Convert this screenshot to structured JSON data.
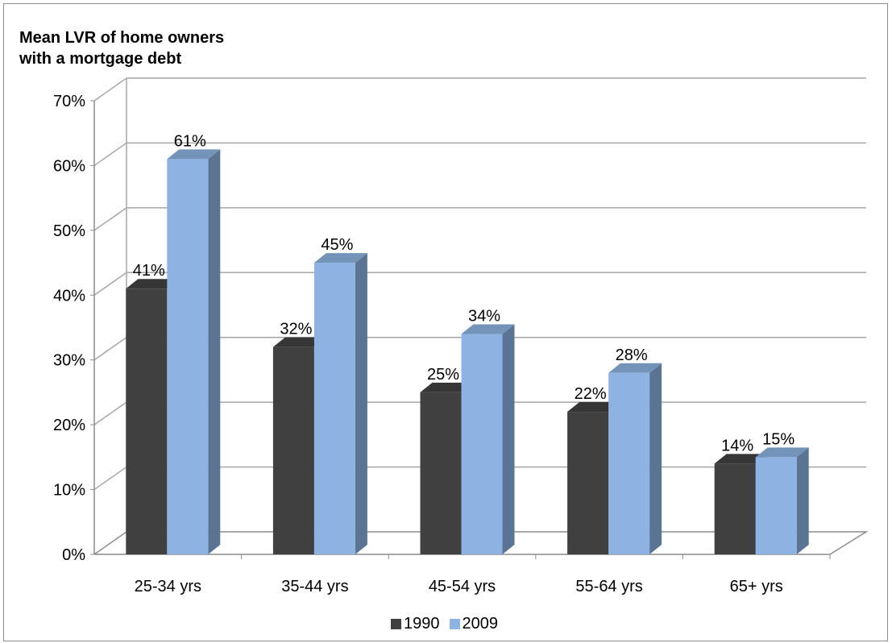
{
  "chart_data": {
    "type": "bar",
    "title": "Mean LVR of home owners with a mortgage debt",
    "title_lines": [
      "Mean LVR of home owners",
      "with a mortgage debt"
    ],
    "categories": [
      "25-34 yrs",
      "35-44 yrs",
      "45-54 yrs",
      "55-64 yrs",
      "65+ yrs"
    ],
    "series": [
      {
        "name": "1990",
        "values": [
          41,
          32,
          25,
          22,
          14
        ],
        "color": "#404040",
        "labels": [
          "41%",
          "32%",
          "25%",
          "22%",
          "14%"
        ]
      },
      {
        "name": "2009",
        "values": [
          61,
          45,
          34,
          28,
          15
        ],
        "color": "#8db3e2",
        "labels": [
          "61%",
          "45%",
          "34%",
          "28%",
          "15%"
        ]
      }
    ],
    "yticks": [
      "0%",
      "10%",
      "20%",
      "30%",
      "40%",
      "50%",
      "60%",
      "70%"
    ],
    "ylim": [
      0,
      70
    ],
    "grid": true,
    "legend": "bottom",
    "style": "3d-clustered-column"
  }
}
